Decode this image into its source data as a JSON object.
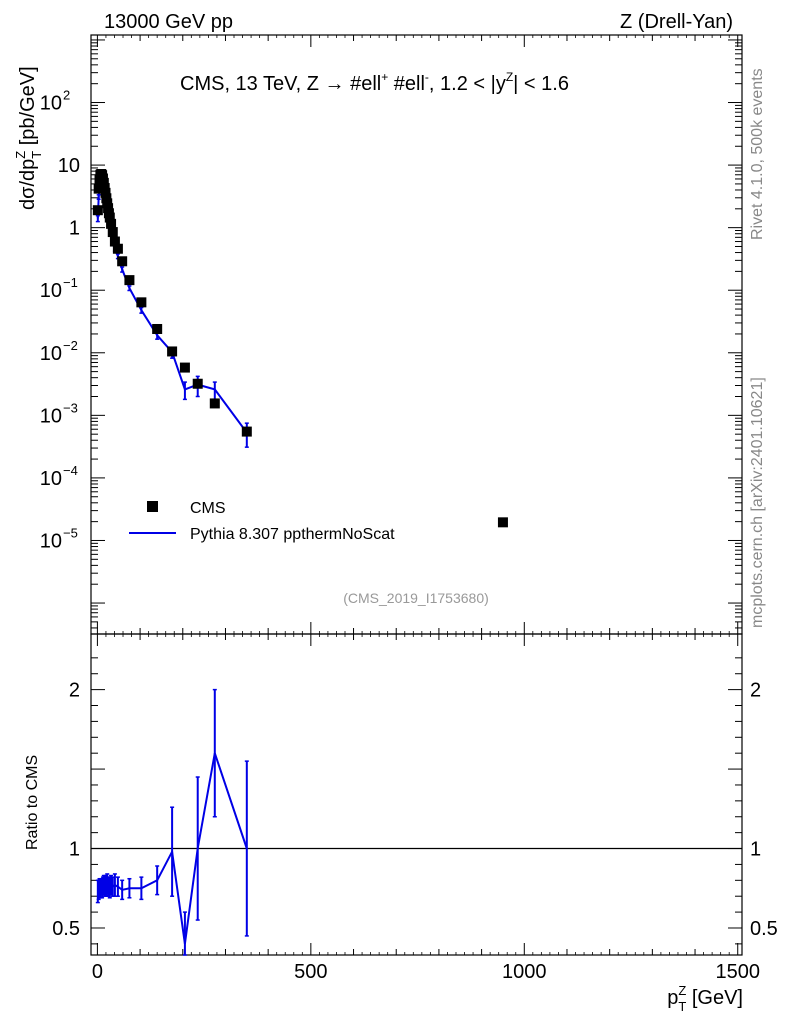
{
  "chart_data": {
    "type": "scatter",
    "header_left": "13000 GeV pp",
    "header_right": "Z (Drell-Yan)",
    "title": "CMS, 13 TeV, Z →  #ell⁺ #ell⁻, 1.2 < |yᶻ| < 1.6",
    "title_parts": {
      "pre": "CMS, 13 TeV, Z →  #ell",
      "sup1": "+",
      "mid": " #ell",
      "sup2": "-",
      "post1": ", 1.2 < |y",
      "sup3": "Z",
      "post2": "| < 1.6"
    },
    "ylabel": {
      "main": "dσ/dp",
      "sup": "Z",
      "sub": "T",
      "unit": " [pb/GeV]"
    },
    "xlabel": {
      "main": "p",
      "sup": "Z",
      "sub": "T",
      "unit": " [GeV]"
    },
    "ratio_ylabel": "Ratio to CMS",
    "side_text_top": "Rivet 4.1.0,  500k events",
    "side_text_bottom": "mcplots.cern.ch [arXiv:2401.10621]",
    "watermark": "(CMS_2019_I1753680)",
    "xlim": [
      -15,
      1510
    ],
    "ylim": [
      3.2e-07,
      1200
    ],
    "ratio_ylim": [
      0.33,
      2.35
    ],
    "x_ticks": [
      0,
      500,
      1000,
      1500
    ],
    "y_ticks": [
      {
        "value": 1e-05,
        "base": "10",
        "exp": "−5"
      },
      {
        "value": 0.0001,
        "base": "10",
        "exp": "−4"
      },
      {
        "value": 0.001,
        "base": "10",
        "exp": "−3"
      },
      {
        "value": 0.01,
        "base": "10",
        "exp": "−2"
      },
      {
        "value": 0.1,
        "base": "10",
        "exp": "−1"
      },
      {
        "value": 1,
        "base": "1",
        "exp": ""
      },
      {
        "value": 10,
        "base": "10",
        "exp": ""
      },
      {
        "value": 100,
        "base": "10",
        "exp": "2"
      }
    ],
    "ratio_ticks": [
      {
        "value": 0.5,
        "label": "0.5"
      },
      {
        "value": 1,
        "label": "1"
      },
      {
        "value": 2,
        "label": "2"
      }
    ],
    "legend": {
      "placement": "lower-left",
      "entries": [
        "CMS",
        "Pythia 8.307 ppthermNoScat"
      ]
    },
    "series": [
      {
        "name": "CMS",
        "style": "marker",
        "color": "#000000",
        "x": [
          1,
          3,
          5,
          7,
          9,
          11,
          13,
          15,
          17,
          19,
          21,
          23,
          25,
          27,
          29,
          32,
          36,
          41,
          48,
          58,
          75,
          103,
          140,
          175,
          205,
          235,
          275,
          350,
          950
        ],
        "y": [
          1.9,
          4.2,
          5.9,
          7.0,
          7.2,
          6.9,
          6.1,
          5.2,
          4.3,
          3.6,
          2.95,
          2.45,
          2.05,
          1.7,
          1.45,
          1.15,
          0.85,
          0.6,
          0.46,
          0.29,
          0.145,
          0.064,
          0.024,
          0.0105,
          0.0058,
          0.0032,
          0.00155,
          0.00055,
          1.95e-05
        ]
      },
      {
        "name": "Pythia 8.307 ppthermNoScat",
        "style": "line",
        "color": "#0000e6",
        "x": [
          1,
          3,
          5,
          7,
          9,
          11,
          13,
          15,
          17,
          19,
          21,
          23,
          25,
          27,
          29,
          32,
          36,
          41,
          48,
          58,
          75,
          103,
          140,
          175,
          205,
          235,
          275,
          350
        ],
        "y": [
          1.4,
          3.1,
          4.4,
          5.2,
          5.4,
          5.2,
          4.7,
          4.0,
          3.3,
          2.8,
          2.25,
          1.9,
          1.55,
          1.3,
          1.1,
          0.88,
          0.65,
          0.46,
          0.35,
          0.215,
          0.108,
          0.048,
          0.019,
          0.0102,
          0.0026,
          0.0031,
          0.0026,
          0.00053
        ],
        "yerr": [
          0.15,
          0.25,
          0.3,
          0.3,
          0.3,
          0.3,
          0.3,
          0.25,
          0.2,
          0.2,
          0.15,
          0.12,
          0.1,
          0.09,
          0.08,
          0.06,
          0.05,
          0.04,
          0.03,
          0.02,
          0.009,
          0.005,
          0.0025,
          0.002,
          0.0008,
          0.0011,
          0.0008,
          0.00022
        ]
      }
    ],
    "ratio_series": {
      "name": "Pythia 8.307 ppthermNoScat / CMS",
      "color": "#0000e6",
      "x": [
        1,
        3,
        5,
        7,
        9,
        11,
        13,
        15,
        17,
        19,
        21,
        23,
        25,
        27,
        29,
        32,
        36,
        41,
        48,
        58,
        75,
        103,
        140,
        175,
        205,
        235,
        275,
        350
      ],
      "y": [
        0.73,
        0.74,
        0.75,
        0.74,
        0.76,
        0.75,
        0.77,
        0.77,
        0.76,
        0.78,
        0.76,
        0.78,
        0.76,
        0.77,
        0.75,
        0.77,
        0.76,
        0.77,
        0.76,
        0.74,
        0.75,
        0.75,
        0.8,
        0.98,
        0.4,
        1.0,
        1.6,
        1.0
      ],
      "yerr": [
        0.07,
        0.06,
        0.06,
        0.05,
        0.05,
        0.06,
        0.05,
        0.06,
        0.06,
        0.05,
        0.06,
        0.06,
        0.06,
        0.05,
        0.06,
        0.06,
        0.06,
        0.07,
        0.06,
        0.06,
        0.06,
        0.07,
        0.09,
        0.28,
        0.2,
        0.45,
        0.4,
        0.55
      ]
    },
    "reference_line": 1
  }
}
